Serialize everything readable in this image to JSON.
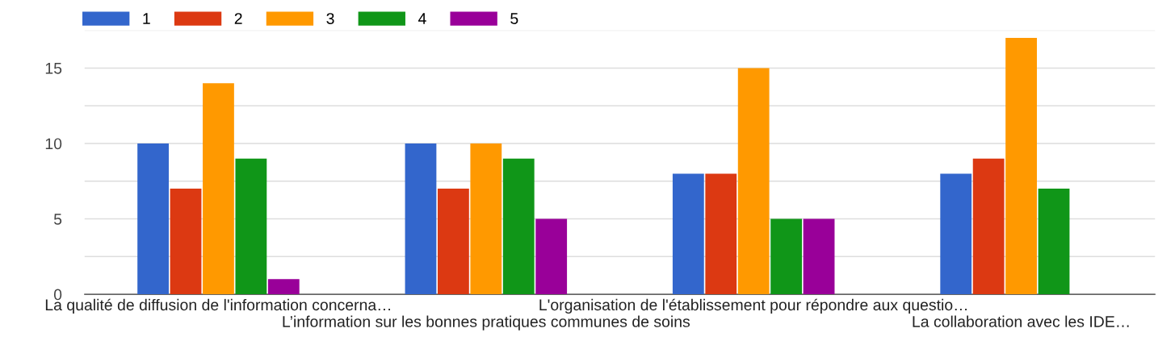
{
  "chart_data": {
    "type": "bar",
    "categories": [
      "La qualité de diffusion de l'information concerna…",
      "L’information sur les bonnes pratiques communes de soins",
      "L'organisation de l'établissement pour répondre aux questio…",
      "La collaboration avec les IDE…"
    ],
    "series": [
      {
        "name": "1",
        "color": "#3366cc",
        "values": [
          10,
          10,
          8,
          8
        ]
      },
      {
        "name": "2",
        "color": "#dc3912",
        "values": [
          7,
          7,
          8,
          9
        ]
      },
      {
        "name": "3",
        "color": "#ff9900",
        "values": [
          14,
          10,
          15,
          17
        ]
      },
      {
        "name": "4",
        "color": "#109618",
        "values": [
          9,
          9,
          5,
          7
        ]
      },
      {
        "name": "5",
        "color": "#990099",
        "values": [
          1,
          5,
          5,
          0
        ]
      }
    ],
    "ylim": [
      0,
      17.5
    ],
    "yticks": [
      0,
      {
        "value": 2.5,
        "label": null
      },
      5,
      {
        "value": 7.5,
        "label": null
      },
      10,
      {
        "value": 12.5,
        "label": null
      },
      15,
      {
        "value": 17.5,
        "label": null
      }
    ],
    "grid": "y",
    "legend": "top left"
  }
}
